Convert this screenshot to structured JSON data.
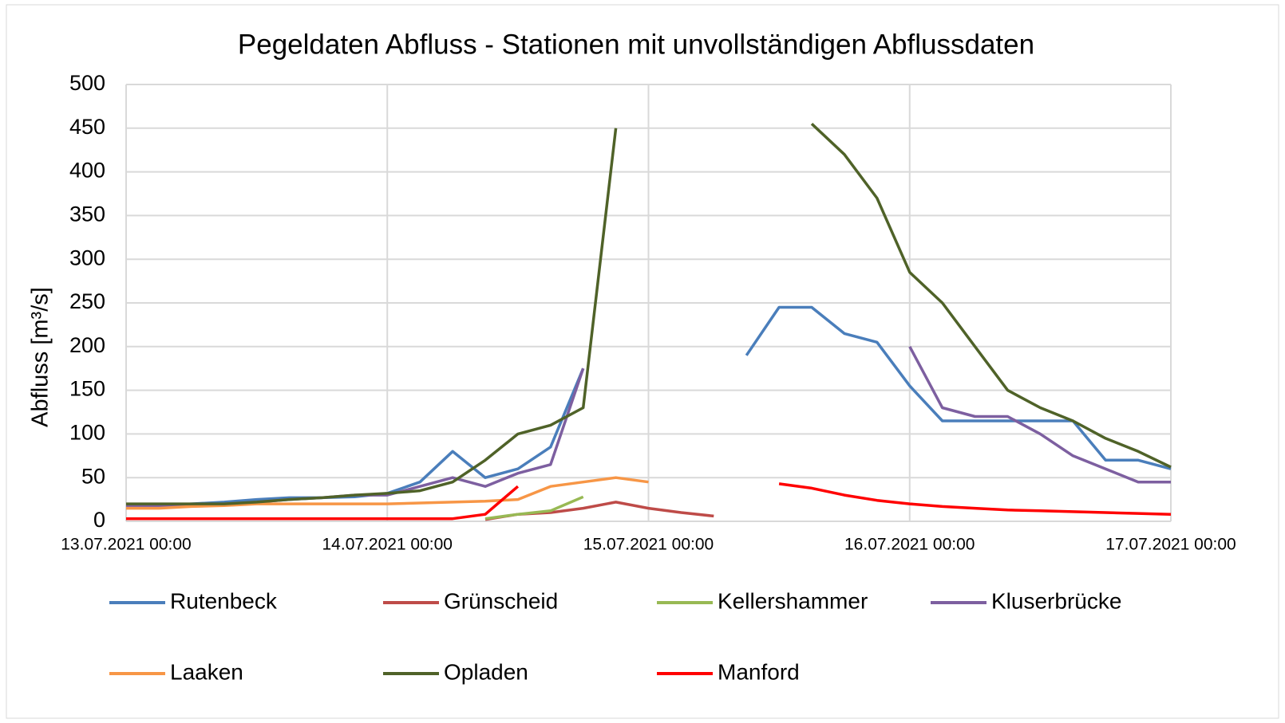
{
  "chart_data": {
    "type": "line",
    "title": "Pegeldaten Abfluss - Stationen mit unvollständigen  Abflussdaten",
    "y_label": "Abfluss [m³/s]",
    "x": [
      "13.07.2021 00:00",
      "13.07.2021 03:00",
      "13.07.2021 06:00",
      "13.07.2021 09:00",
      "13.07.2021 12:00",
      "13.07.2021 15:00",
      "13.07.2021 18:00",
      "13.07.2021 21:00",
      "14.07.2021 00:00",
      "14.07.2021 03:00",
      "14.07.2021 06:00",
      "14.07.2021 09:00",
      "14.07.2021 12:00",
      "14.07.2021 15:00",
      "14.07.2021 18:00",
      "14.07.2021 21:00",
      "15.07.2021 00:00",
      "15.07.2021 03:00",
      "15.07.2021 06:00",
      "15.07.2021 09:00",
      "15.07.2021 12:00",
      "15.07.2021 15:00",
      "15.07.2021 18:00",
      "15.07.2021 21:00",
      "16.07.2021 00:00",
      "16.07.2021 03:00",
      "16.07.2021 06:00",
      "16.07.2021 09:00",
      "16.07.2021 12:00",
      "16.07.2021 15:00",
      "16.07.2021 18:00",
      "16.07.2021 21:00",
      "17.07.2021 00:00"
    ],
    "xlim": [
      "13.07.2021 00:00",
      "17.07.2021 00:00"
    ],
    "xticks": [
      "13.07.2021 00:00",
      "14.07.2021 00:00",
      "15.07.2021 00:00",
      "16.07.2021 00:00",
      "17.07.2021 00:00"
    ],
    "ylim": [
      0,
      500
    ],
    "yticks": [
      0,
      50,
      100,
      150,
      200,
      250,
      300,
      350,
      400,
      450,
      500
    ],
    "grid": true,
    "series": [
      {
        "name": "Rutenbeck",
        "color": "#4a7ebb",
        "values": [
          18,
          18,
          20,
          22,
          25,
          27,
          27,
          28,
          32,
          45,
          80,
          50,
          60,
          85,
          175,
          null,
          null,
          null,
          null,
          190,
          245,
          245,
          215,
          205,
          155,
          115,
          115,
          115,
          115,
          115,
          70,
          70,
          60
        ]
      },
      {
        "name": "Grünscheid",
        "color": "#be4b48",
        "values": [
          null,
          null,
          null,
          null,
          null,
          null,
          null,
          null,
          null,
          null,
          null,
          2,
          8,
          10,
          15,
          22,
          15,
          10,
          6,
          null,
          null,
          null,
          null,
          null,
          null,
          null,
          null,
          null,
          null,
          null,
          null,
          null,
          null
        ]
      },
      {
        "name": "Kellershammer",
        "color": "#98b954",
        "values": [
          null,
          null,
          null,
          null,
          null,
          null,
          null,
          null,
          null,
          null,
          null,
          3,
          8,
          12,
          28,
          null,
          null,
          null,
          null,
          null,
          null,
          null,
          null,
          null,
          null,
          null,
          null,
          null,
          null,
          null,
          null,
          null,
          null
        ]
      },
      {
        "name": "Kluserbrücke",
        "color": "#7d5fa0",
        "values": [
          18,
          18,
          18,
          20,
          22,
          25,
          27,
          30,
          30,
          40,
          50,
          40,
          55,
          65,
          175,
          null,
          null,
          null,
          null,
          null,
          null,
          null,
          null,
          null,
          200,
          130,
          120,
          120,
          100,
          75,
          60,
          45,
          45
        ]
      },
      {
        "name": "Laaken",
        "color": "#f79646",
        "values": [
          15,
          15,
          17,
          18,
          20,
          20,
          20,
          20,
          20,
          21,
          22,
          23,
          25,
          40,
          45,
          50,
          45,
          null,
          null,
          null,
          null,
          null,
          null,
          null,
          null,
          null,
          null,
          null,
          null,
          null,
          null,
          null,
          null
        ]
      },
      {
        "name": "Opladen",
        "color": "#4f6228",
        "values": [
          20,
          20,
          20,
          20,
          22,
          25,
          27,
          30,
          32,
          35,
          45,
          70,
          100,
          110,
          130,
          450,
          null,
          null,
          null,
          null,
          null,
          455,
          420,
          370,
          285,
          250,
          200,
          150,
          130,
          115,
          95,
          80,
          62
        ]
      },
      {
        "name": "Manford",
        "color": "#ff0000",
        "values": [
          3,
          3,
          3,
          3,
          3,
          3,
          3,
          3,
          3,
          3,
          3,
          8,
          40,
          null,
          null,
          null,
          null,
          null,
          null,
          null,
          43,
          38,
          30,
          24,
          20,
          17,
          15,
          13,
          12,
          11,
          10,
          9,
          8
        ]
      }
    ]
  }
}
